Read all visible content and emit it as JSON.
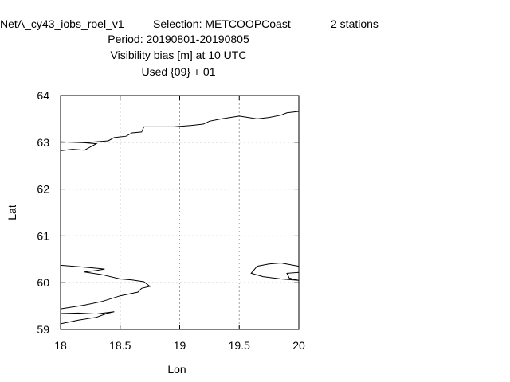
{
  "chart_data": {
    "type": "line",
    "title": {
      "experiment": "NetA_cy43_iobs_roel_v1",
      "selection": "Selection: METCOOPCoast",
      "stations": "2 stations",
      "period": "Period: 20190801-20190805",
      "parameter": "Visibility bias [m] at  10 UTC",
      "used": "Used {09} + 01"
    },
    "xlabel": "Lon",
    "ylabel": "Lat",
    "xlim": [
      18,
      20
    ],
    "ylim": [
      59,
      64
    ],
    "xticks": [
      "18",
      "18.5",
      "19",
      "19.5",
      "20"
    ],
    "yticks": [
      "59",
      "60",
      "61",
      "62",
      "63",
      "64"
    ],
    "grid": true,
    "series": [
      {
        "values": [
          [
            18.0,
            62.82
          ],
          [
            18.1,
            62.85
          ],
          [
            18.2,
            62.83
          ],
          [
            18.25,
            62.9
          ],
          [
            18.3,
            62.97
          ],
          [
            18.2,
            62.99
          ],
          [
            18.0,
            63.01
          ]
        ]
      },
      {
        "values": [
          [
            18.2,
            62.99
          ],
          [
            18.4,
            63.03
          ],
          [
            18.45,
            63.1
          ],
          [
            18.55,
            63.13
          ],
          [
            18.6,
            63.2
          ],
          [
            18.68,
            63.22
          ],
          [
            18.7,
            63.33
          ],
          [
            18.95,
            63.33
          ],
          [
            19.1,
            63.36
          ],
          [
            19.2,
            63.39
          ],
          [
            19.25,
            63.45
          ],
          [
            19.35,
            63.5
          ],
          [
            19.5,
            63.56
          ],
          [
            19.65,
            63.5
          ],
          [
            19.75,
            63.53
          ],
          [
            19.85,
            63.58
          ],
          [
            19.9,
            63.63
          ],
          [
            20.0,
            63.66
          ]
        ]
      },
      {
        "values": [
          [
            18.0,
            60.37
          ],
          [
            18.2,
            60.33
          ],
          [
            18.37,
            60.29
          ],
          [
            18.3,
            60.26
          ],
          [
            18.2,
            60.23
          ],
          [
            18.35,
            60.17
          ],
          [
            18.5,
            60.08
          ],
          [
            18.6,
            60.06
          ],
          [
            18.7,
            60.02
          ],
          [
            18.75,
            59.92
          ],
          [
            18.68,
            59.88
          ],
          [
            18.65,
            59.8
          ],
          [
            18.5,
            59.72
          ],
          [
            18.35,
            59.6
          ],
          [
            18.2,
            59.52
          ],
          [
            18.0,
            59.44
          ]
        ]
      },
      {
        "values": [
          [
            18.0,
            59.34
          ],
          [
            18.15,
            59.35
          ],
          [
            18.3,
            59.33
          ],
          [
            18.45,
            59.38
          ],
          [
            18.4,
            59.35
          ],
          [
            18.3,
            59.26
          ],
          [
            18.15,
            59.2
          ],
          [
            18.0,
            59.12
          ]
        ]
      },
      {
        "values": [
          [
            20.0,
            60.35
          ],
          [
            19.85,
            60.42
          ],
          [
            19.75,
            60.4
          ],
          [
            19.65,
            60.35
          ],
          [
            19.6,
            60.2
          ],
          [
            19.7,
            60.13
          ],
          [
            19.85,
            60.08
          ],
          [
            20.0,
            60.05
          ],
          [
            19.92,
            60.1
          ],
          [
            19.9,
            60.2
          ],
          [
            20.0,
            60.22
          ]
        ]
      }
    ]
  }
}
